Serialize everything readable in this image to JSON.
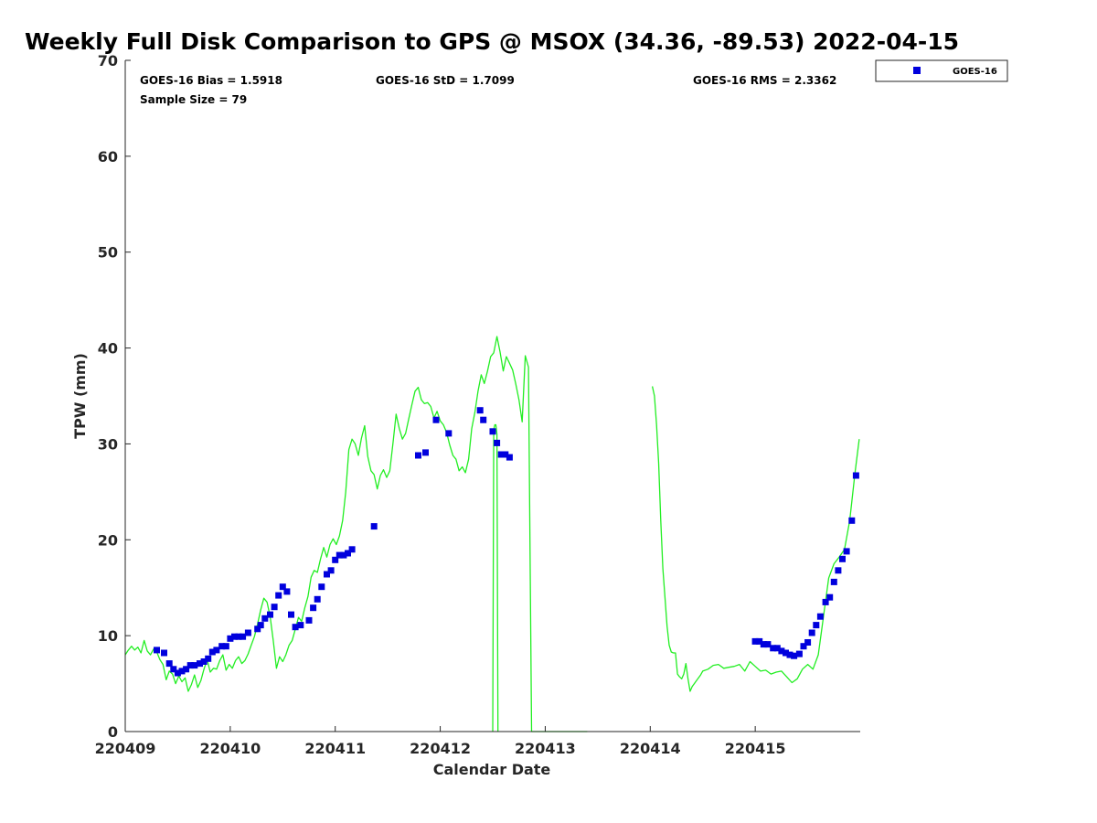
{
  "chart_data": {
    "type": "scatter",
    "title": "Weekly Full Disk Comparison to GPS @ MSOX (34.36, -89.53) 2022-04-15",
    "xlabel": "Calendar Date",
    "ylabel": "TPW (mm)",
    "xlim": [
      0,
      7
    ],
    "ylim": [
      0,
      70
    ],
    "x_ticks": [
      {
        "value": 0,
        "label": "220409"
      },
      {
        "value": 1,
        "label": "220410"
      },
      {
        "value": 2,
        "label": "220411"
      },
      {
        "value": 3,
        "label": "220412"
      },
      {
        "value": 4,
        "label": "220413"
      },
      {
        "value": 5,
        "label": "220414"
      },
      {
        "value": 6,
        "label": "220415"
      }
    ],
    "y_ticks": [
      0,
      10,
      20,
      30,
      40,
      50,
      60,
      70
    ],
    "grid": false,
    "legend": {
      "placement": "outside-top-right",
      "entries": [
        "GOES-16"
      ]
    },
    "stats": {
      "bias": "GOES-16 Bias = 1.5918",
      "std": "GOES-16 StD = 1.7099",
      "rms": "GOES-16 RMS = 2.3362",
      "sample": "Sample Size = 79"
    },
    "colors": {
      "goes": "#0000dd",
      "gps": "#22ee22",
      "axis": "#262626"
    },
    "series": [
      {
        "name": "GOES-16",
        "style": "square-markers",
        "x": [
          0.3,
          0.37,
          0.42,
          0.46,
          0.5,
          0.54,
          0.58,
          0.62,
          0.66,
          0.71,
          0.75,
          0.79,
          0.83,
          0.87,
          0.92,
          0.96,
          1.0,
          1.04,
          1.08,
          1.12,
          1.17,
          1.26,
          1.29,
          1.33,
          1.38,
          1.42,
          1.46,
          1.5,
          1.54,
          1.58,
          1.62,
          1.67,
          1.75,
          1.79,
          1.83,
          1.87,
          1.92,
          1.96,
          2.0,
          2.04,
          2.08,
          2.12,
          2.16,
          2.37,
          2.79,
          2.86,
          2.96,
          3.08,
          3.38,
          3.41,
          3.5,
          3.54,
          3.58,
          3.62,
          3.66,
          6.0,
          6.04,
          6.08,
          6.12,
          6.17,
          6.21,
          6.25,
          6.29,
          6.33,
          6.37,
          6.42,
          6.46,
          6.5,
          6.54,
          6.58,
          6.62,
          6.67,
          6.71,
          6.75,
          6.79,
          6.83,
          6.87,
          6.92,
          6.96
        ],
        "y": [
          8.5,
          8.2,
          7.1,
          6.5,
          6.1,
          6.3,
          6.5,
          6.9,
          6.9,
          7.1,
          7.3,
          7.6,
          8.3,
          8.5,
          8.9,
          8.9,
          9.7,
          9.9,
          9.9,
          9.9,
          10.3,
          10.7,
          11.1,
          11.8,
          12.2,
          13.0,
          14.2,
          15.1,
          14.6,
          12.2,
          10.9,
          11.1,
          11.6,
          12.9,
          13.8,
          15.1,
          16.4,
          16.8,
          17.9,
          18.4,
          18.4,
          18.6,
          19.0,
          21.4,
          28.8,
          29.1,
          32.5,
          31.1,
          33.5,
          32.5,
          31.3,
          30.1,
          28.9,
          28.9,
          28.6,
          9.4,
          9.4,
          9.1,
          9.1,
          8.7,
          8.7,
          8.4,
          8.2,
          8.0,
          7.9,
          8.1,
          8.9,
          9.3,
          10.3,
          11.1,
          12.0,
          13.5,
          14.0,
          15.6,
          16.8,
          18.0,
          18.8,
          22.0,
          26.7
        ]
      },
      {
        "name": "",
        "style": "line",
        "segments": [
          {
            "x": [
              0.0,
              0.03,
              0.06,
              0.09,
              0.12,
              0.15,
              0.18,
              0.21,
              0.24,
              0.27,
              0.3,
              0.33,
              0.36,
              0.39,
              0.42,
              0.45,
              0.48,
              0.51,
              0.54,
              0.57,
              0.6,
              0.63,
              0.66,
              0.69,
              0.72,
              0.75,
              0.78,
              0.81,
              0.84,
              0.87,
              0.9,
              0.93,
              0.96,
              0.99,
              1.02,
              1.05,
              1.08,
              1.11,
              1.14,
              1.17,
              1.2,
              1.23,
              1.26,
              1.29,
              1.32,
              1.35,
              1.38,
              1.41,
              1.44,
              1.47,
              1.5,
              1.53,
              1.56,
              1.59,
              1.62,
              1.65,
              1.68,
              1.71,
              1.74,
              1.77,
              1.8,
              1.83,
              1.86,
              1.89,
              1.92,
              1.95,
              1.98,
              2.01,
              2.04,
              2.07,
              2.1,
              2.13,
              2.16,
              2.19,
              2.22,
              2.25,
              2.28,
              2.31,
              2.34,
              2.37,
              2.4,
              2.43,
              2.46,
              2.49,
              2.52,
              2.55,
              2.58,
              2.61,
              2.64,
              2.67,
              2.7,
              2.73,
              2.76,
              2.79,
              2.82,
              2.85,
              2.88,
              2.91,
              2.94,
              2.97,
              3.0,
              3.03,
              3.06,
              3.09,
              3.12,
              3.15,
              3.18,
              3.21,
              3.24,
              3.27,
              3.3,
              3.33,
              3.36,
              3.39,
              3.42,
              3.45,
              3.48,
              3.51,
              3.54,
              3.57,
              3.6,
              3.63,
              3.66,
              3.69,
              3.72,
              3.75,
              3.78,
              3.81,
              3.84,
              3.87,
              3.9,
              3.93,
              3.96,
              3.99,
              4.02,
              4.05,
              4.08,
              4.11,
              4.14,
              4.17,
              4.2,
              4.23,
              4.26,
              4.29,
              4.32,
              4.35,
              4.38,
              4.4
            ],
            "y": [
              8.0,
              8.5,
              8.9,
              8.5,
              8.8,
              8.2,
              9.5,
              8.4,
              8.0,
              8.6,
              8.3,
              7.5,
              7.0,
              5.4,
              6.3,
              6.0,
              5.0,
              5.8,
              5.2,
              5.6,
              4.2,
              4.9,
              5.9,
              4.6,
              5.3,
              6.5,
              7.5,
              6.2,
              6.6,
              6.5,
              7.4,
              8.0,
              6.4,
              7.0,
              6.6,
              7.4,
              7.8,
              7.1,
              7.4,
              8.1,
              9.0,
              9.9,
              11.2,
              12.7,
              13.9,
              13.5,
              12.0,
              9.5,
              6.6,
              7.8,
              7.3,
              8.0,
              9.0,
              9.5,
              10.7,
              11.9,
              11.5,
              12.9,
              14.1,
              16.1,
              16.8,
              16.6,
              18.0,
              19.2,
              18.2,
              19.5,
              20.1,
              19.5,
              20.4,
              22.0,
              25.0,
              29.4,
              30.5,
              30.0,
              28.8,
              30.6,
              31.9,
              28.7,
              27.2,
              26.8,
              25.3,
              26.7,
              27.3,
              26.5,
              27.2,
              30.1,
              33.1,
              31.6,
              30.5,
              31.1,
              32.6,
              34.1,
              35.5,
              35.9,
              34.6,
              34.2,
              34.3,
              33.9,
              32.7,
              33.4,
              32.4,
              32.0,
              31.2,
              29.9,
              28.8,
              28.4,
              27.2,
              27.6,
              27.0,
              28.4,
              31.6,
              33.3,
              35.5,
              37.2,
              36.3,
              37.6,
              39.1,
              39.5,
              41.2,
              39.6,
              37.6,
              39.1,
              38.4,
              37.7,
              36.2,
              34.6,
              32.3,
              39.2,
              38.0,
              0.0,
              0.0,
              0.0,
              0.0,
              0.0,
              0.0,
              0.0,
              0.0,
              0.0,
              0.0,
              0.0,
              0.0,
              0.0,
              0.0,
              0.0,
              0.0,
              0.0,
              0.0,
              0.0
            ]
          },
          {
            "x": [
              3.5,
              3.51,
              3.52,
              3.53,
              3.54,
              3.55
            ],
            "y": [
              0.0,
              31.5,
              32.0,
              32.0,
              31.0,
              0.0
            ]
          },
          {
            "x": [
              5.02,
              5.04,
              5.06,
              5.08,
              5.1,
              5.12,
              5.14,
              5.16,
              5.18,
              5.2,
              5.22,
              5.24,
              5.26,
              5.28,
              5.3,
              5.32,
              5.34,
              5.36,
              5.38,
              5.4,
              5.42,
              5.44,
              5.46,
              5.48,
              5.5,
              5.55,
              5.6,
              5.65,
              5.7,
              5.75,
              5.8,
              5.85,
              5.9,
              5.95,
              6.0,
              6.05,
              6.1,
              6.15,
              6.2,
              6.25,
              6.3,
              6.35,
              6.4,
              6.45,
              6.5,
              6.55,
              6.6,
              6.65,
              6.7,
              6.75,
              6.8,
              6.85,
              6.9,
              6.95,
              6.99
            ],
            "y": [
              36.0,
              35.0,
              32.0,
              28.0,
              22.0,
              17.0,
              14.0,
              11.0,
              9.0,
              8.3,
              8.2,
              8.2,
              6.0,
              5.7,
              5.5,
              6.0,
              7.1,
              5.5,
              4.2,
              4.7,
              5.0,
              5.3,
              5.6,
              5.9,
              6.3,
              6.5,
              6.9,
              7.0,
              6.6,
              6.7,
              6.8,
              7.0,
              6.3,
              7.3,
              6.8,
              6.3,
              6.4,
              6.0,
              6.2,
              6.3,
              5.7,
              5.1,
              5.5,
              6.5,
              7.0,
              6.5,
              8.0,
              12.0,
              16.0,
              17.5,
              18.2,
              19.0,
              22.0,
              27.0,
              30.5
            ]
          }
        ]
      }
    ]
  }
}
